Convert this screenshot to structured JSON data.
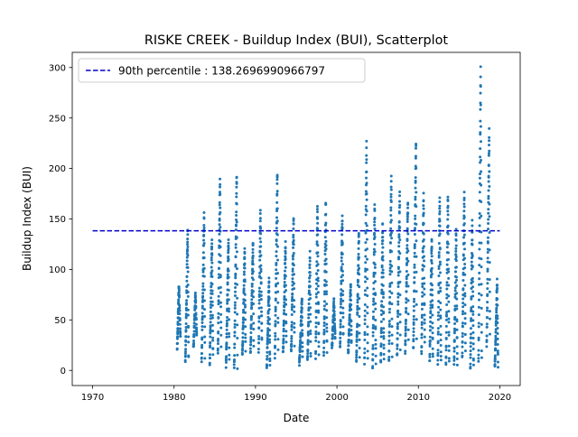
{
  "chart_data": {
    "type": "scatter",
    "title": "RISKE CREEK - Buildup Index (BUI), Scatterplot",
    "xlabel": "Date",
    "ylabel": "Buildup Index (BUI)",
    "x_scale": "date",
    "xlim": [
      1967.5,
      2022.5
    ],
    "ylim": [
      -15,
      315
    ],
    "x_ticks": [
      1970,
      1980,
      1990,
      2000,
      2010,
      2020
    ],
    "x_tick_labels": [
      "1970",
      "1980",
      "1990",
      "2000",
      "2010",
      "2020"
    ],
    "y_ticks": [
      0,
      50,
      100,
      150,
      200,
      250,
      300
    ],
    "y_tick_labels": [
      "0",
      "50",
      "100",
      "150",
      "200",
      "250",
      "300"
    ],
    "grid": false,
    "legend": {
      "placement": "top-left",
      "entries": [
        {
          "label": "90th percentile : 138.2696990966797",
          "style": "dashed-line",
          "color": "#0000cc"
        }
      ]
    },
    "reference_line": {
      "label": "90th percentile : 138.2696990966797",
      "y": 138.2696990966797,
      "x_start": 1970,
      "x_end": 2020,
      "color": "#0000cc",
      "style": "dashed"
    },
    "series": [
      {
        "color": "#1f77b4",
        "fire_season_peaks": [
          {
            "year": 1981,
            "peak": 86
          },
          {
            "year": 1982,
            "peak": 142
          },
          {
            "year": 1983,
            "peak": 76
          },
          {
            "year": 1984,
            "peak": 156
          },
          {
            "year": 1985,
            "peak": 130
          },
          {
            "year": 1986,
            "peak": 191
          },
          {
            "year": 1987,
            "peak": 133
          },
          {
            "year": 1988,
            "peak": 196
          },
          {
            "year": 1989,
            "peak": 120
          },
          {
            "year": 1990,
            "peak": 128
          },
          {
            "year": 1991,
            "peak": 158
          },
          {
            "year": 1992,
            "peak": 90
          },
          {
            "year": 1993,
            "peak": 199
          },
          {
            "year": 1994,
            "peak": 128
          },
          {
            "year": 1995,
            "peak": 152
          },
          {
            "year": 1996,
            "peak": 72
          },
          {
            "year": 1997,
            "peak": 116
          },
          {
            "year": 1998,
            "peak": 167
          },
          {
            "year": 1999,
            "peak": 169
          },
          {
            "year": 2000,
            "peak": 70
          },
          {
            "year": 2001,
            "peak": 155
          },
          {
            "year": 2002,
            "peak": 87
          },
          {
            "year": 2003,
            "peak": 138
          },
          {
            "year": 2004,
            "peak": 226
          },
          {
            "year": 2005,
            "peak": 165
          },
          {
            "year": 2006,
            "peak": 147
          },
          {
            "year": 2007,
            "peak": 191
          },
          {
            "year": 2008,
            "peak": 175
          },
          {
            "year": 2009,
            "peak": 170
          },
          {
            "year": 2010,
            "peak": 226
          },
          {
            "year": 2011,
            "peak": 175
          },
          {
            "year": 2012,
            "peak": 130
          },
          {
            "year": 2013,
            "peak": 175
          },
          {
            "year": 2014,
            "peak": 175
          },
          {
            "year": 2015,
            "peak": 140
          },
          {
            "year": 2016,
            "peak": 178
          },
          {
            "year": 2017,
            "peak": 150
          },
          {
            "year": 2018,
            "peak": 299
          },
          {
            "year": 2019,
            "peak": 238
          },
          {
            "year": 2020,
            "peak": 90
          }
        ]
      }
    ]
  }
}
